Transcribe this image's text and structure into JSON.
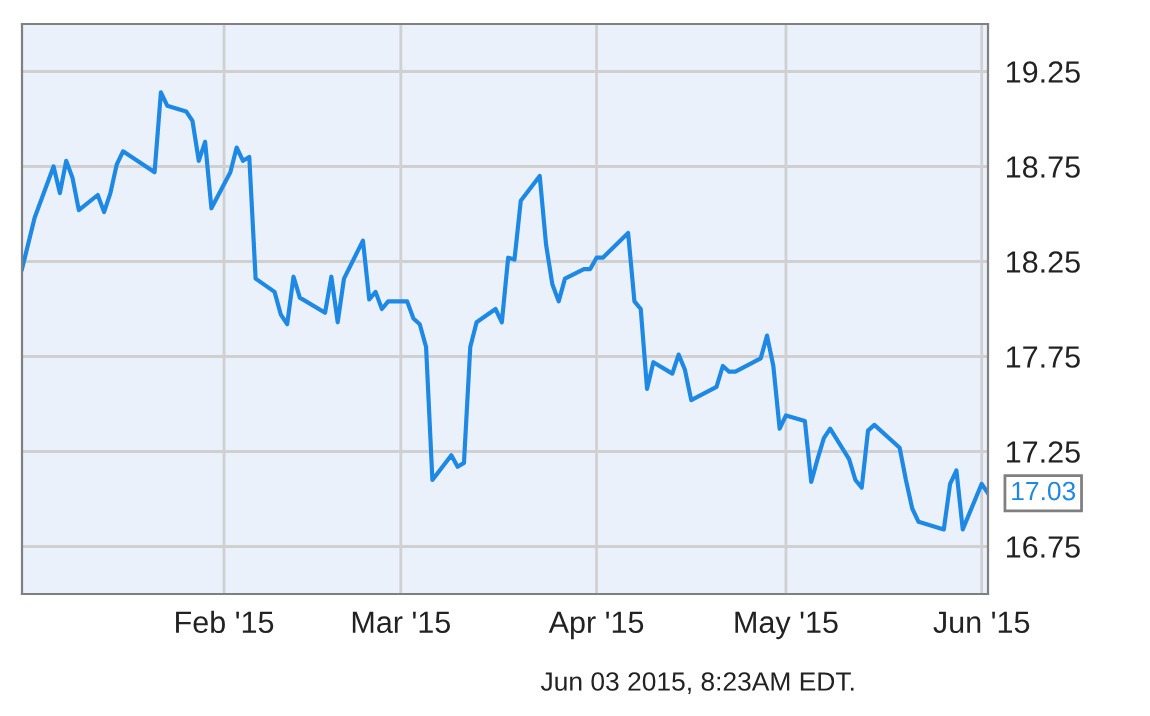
{
  "chart_data": {
    "type": "line",
    "x": [
      "2014-12-31",
      "2015-01-02",
      "2015-01-05",
      "2015-01-06",
      "2015-01-07",
      "2015-01-08",
      "2015-01-09",
      "2015-01-12",
      "2015-01-13",
      "2015-01-14",
      "2015-01-15",
      "2015-01-16",
      "2015-01-21",
      "2015-01-22",
      "2015-01-23",
      "2015-01-26",
      "2015-01-27",
      "2015-01-28",
      "2015-01-29",
      "2015-01-30",
      "2015-02-02",
      "2015-02-03",
      "2015-02-04",
      "2015-02-05",
      "2015-02-06",
      "2015-02-09",
      "2015-02-10",
      "2015-02-11",
      "2015-02-12",
      "2015-02-13",
      "2015-02-17",
      "2015-02-18",
      "2015-02-19",
      "2015-02-20",
      "2015-02-23",
      "2015-02-24",
      "2015-02-25",
      "2015-02-26",
      "2015-02-27",
      "2015-03-02",
      "2015-03-03",
      "2015-03-04",
      "2015-03-05",
      "2015-03-06",
      "2015-03-09",
      "2015-03-10",
      "2015-03-11",
      "2015-03-12",
      "2015-03-13",
      "2015-03-16",
      "2015-03-17",
      "2015-03-18",
      "2015-03-19",
      "2015-03-20",
      "2015-03-23",
      "2015-03-24",
      "2015-03-25",
      "2015-03-26",
      "2015-03-27",
      "2015-03-30",
      "2015-03-31",
      "2015-04-01",
      "2015-04-02",
      "2015-04-06",
      "2015-04-07",
      "2015-04-08",
      "2015-04-09",
      "2015-04-10",
      "2015-04-13",
      "2015-04-14",
      "2015-04-15",
      "2015-04-16",
      "2015-04-20",
      "2015-04-21",
      "2015-04-22",
      "2015-04-23",
      "2015-04-27",
      "2015-04-28",
      "2015-04-29",
      "2015-04-30",
      "2015-05-01",
      "2015-05-04",
      "2015-05-05",
      "2015-05-06",
      "2015-05-07",
      "2015-05-08",
      "2015-05-11",
      "2015-05-12",
      "2015-05-13",
      "2015-05-14",
      "2015-05-15",
      "2015-05-18",
      "2015-05-19",
      "2015-05-20",
      "2015-05-21",
      "2015-05-22",
      "2015-05-26",
      "2015-05-27",
      "2015-05-28",
      "2015-05-29",
      "2015-06-01",
      "2015-06-02"
    ],
    "series": [
      {
        "color": "#1e88e5",
        "values": [
          18.21,
          18.48,
          18.75,
          18.61,
          18.78,
          18.69,
          18.52,
          18.6,
          18.51,
          18.61,
          18.76,
          18.83,
          18.72,
          19.14,
          19.07,
          19.04,
          18.99,
          18.78,
          18.88,
          18.53,
          18.72,
          18.85,
          18.78,
          18.8,
          18.16,
          18.09,
          17.97,
          17.92,
          18.17,
          18.06,
          17.98,
          18.17,
          17.93,
          18.16,
          18.36,
          18.05,
          18.09,
          18.0,
          18.04,
          18.04,
          17.95,
          17.92,
          17.8,
          17.1,
          17.23,
          17.17,
          17.19,
          17.8,
          17.93,
          18.0,
          17.93,
          18.27,
          18.26,
          18.57,
          18.7,
          18.34,
          18.13,
          18.04,
          18.16,
          18.21,
          18.21,
          18.27,
          18.27,
          18.4,
          18.04,
          18.0,
          17.58,
          17.72,
          17.66,
          17.76,
          17.68,
          17.52,
          17.59,
          17.7,
          17.67,
          17.67,
          17.74,
          17.86,
          17.7,
          17.37,
          17.44,
          17.41,
          17.09,
          17.21,
          17.32,
          17.37,
          17.21,
          17.1,
          17.06,
          17.36,
          17.39,
          17.3,
          17.27,
          17.1,
          16.95,
          16.88,
          16.84,
          17.08,
          17.15,
          16.84,
          17.08,
          17.03
        ]
      }
    ],
    "xlim": [
      "2014-12-31",
      "2015-06-02"
    ],
    "xticks": [
      {
        "value": "2015-02-01",
        "label": "Feb '15"
      },
      {
        "value": "2015-03-01",
        "label": "Mar '15"
      },
      {
        "value": "2015-04-01",
        "label": "Apr '15"
      },
      {
        "value": "2015-05-01",
        "label": "May '15"
      },
      {
        "value": "2015-06-01",
        "label": "Jun '15"
      }
    ],
    "ylim": [
      16.5,
      19.5
    ],
    "yticks": [
      16.75,
      17.25,
      17.75,
      18.25,
      18.75,
      19.25
    ],
    "grid": true,
    "legend": false,
    "marker": "none",
    "line_style": "solid",
    "annotations": [
      {
        "text": "17.03",
        "x": "2015-06-02",
        "y": 17.03
      },
      "Jun 03 2015, 8:23AM EDT."
    ]
  }
}
